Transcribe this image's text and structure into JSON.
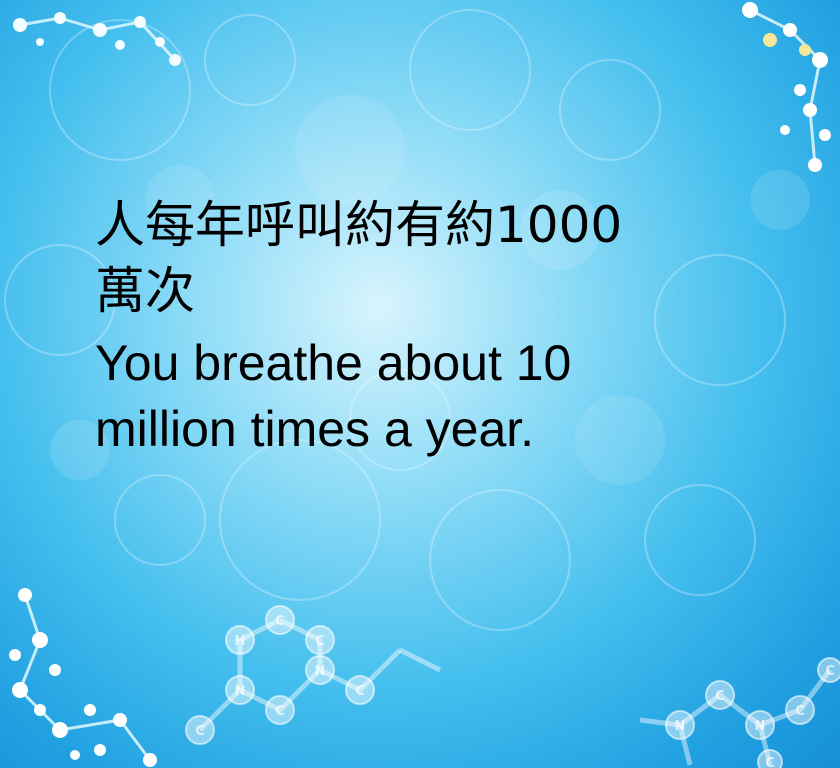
{
  "message": {
    "zh_lines": [
      "人每年呼叫約有約1000",
      "萬次"
    ],
    "en_lines": [
      "You breathe about 10",
      "million times a year."
    ]
  },
  "colors": {
    "background_center": "#d8f4fd",
    "background_edge": "#178fd6",
    "text": "#000000"
  },
  "decorations": [
    "molecule-top-left",
    "molecule-top-right",
    "molecule-bottom-left",
    "molecule-bottom-center",
    "molecule-bottom-right"
  ],
  "atom_letters": [
    "C",
    "N",
    "C",
    "N",
    "C",
    "H",
    "C",
    "C",
    "N",
    "C",
    "N",
    "C",
    "C",
    "C"
  ]
}
